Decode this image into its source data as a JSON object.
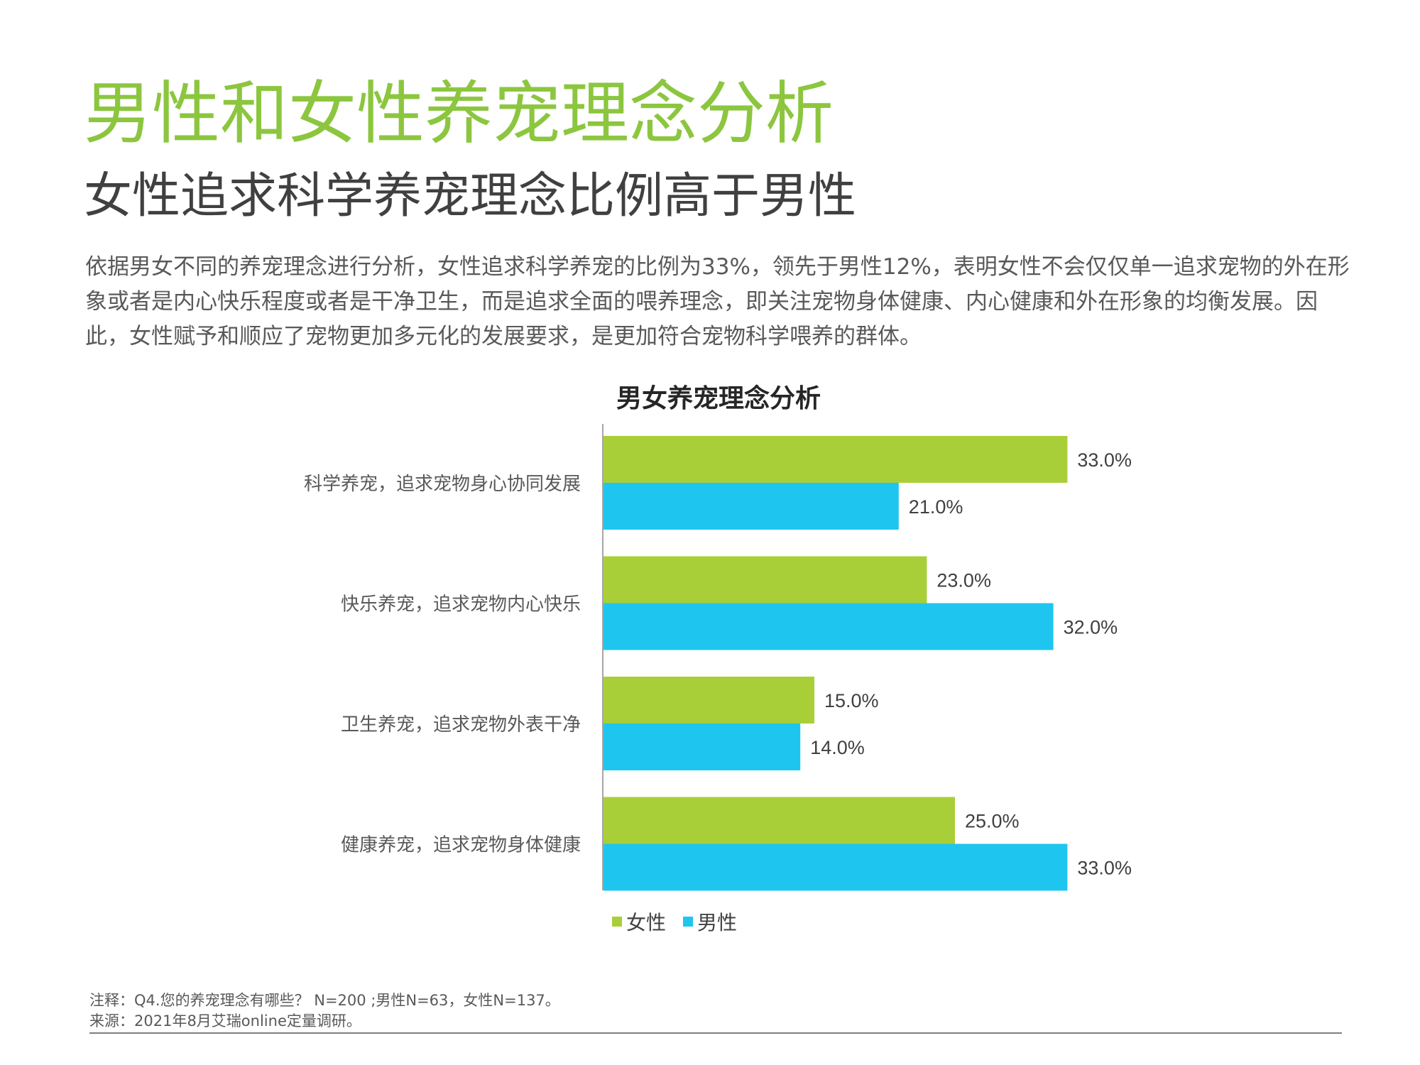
{
  "page": {
    "title": "男性和女性养宠理念分析",
    "subtitle": "女性追求科学养宠理念比例高于男性",
    "paragraph": "依据男女不同的养宠理念进行分析，女性追求科学养宠的比例为33%，领先于男性12%，表明女性不会仅仅单一追求宠物的外在形象或者是内心快乐程度或者是干净卫生，而是追求全面的喂养理念，即关注宠物身体健康、内心健康和外在形象的均衡发展。因此，女性赋予和顺应了宠物更加多元化的发展要求，是更加符合宠物科学喂养的群体。",
    "note": "注释：Q4.您的养宠理念有哪些？ N=200 ;男性N=63，女性N=137。",
    "source": "来源：2021年8月艾瑞online定量调研。"
  },
  "colors": {
    "title": "#8cc63f",
    "female": "#a9cf38",
    "male": "#1ec6ef",
    "axis": "#a6a6a6",
    "footer_line": "#7f7f7f"
  },
  "chart_data": {
    "type": "bar",
    "orientation": "horizontal",
    "title": "男女养宠理念分析",
    "categories": [
      "科学养宠，追求宠物身心协同发展",
      "快乐养宠，追求宠物内心快乐",
      "卫生养宠，追求宠物外表干净",
      "健康养宠，追求宠物身体健康"
    ],
    "series": [
      {
        "name": "女性",
        "values": [
          33.0,
          23.0,
          15.0,
          25.0
        ],
        "labels": [
          "33.0%",
          "23.0%",
          "15.0%",
          "25.0%"
        ],
        "color": "#a9cf38"
      },
      {
        "name": "男性",
        "values": [
          21.0,
          32.0,
          14.0,
          33.0
        ],
        "labels": [
          "21.0%",
          "32.0%",
          "14.0%",
          "33.0%"
        ],
        "color": "#1ec6ef"
      }
    ],
    "xlim": [
      0,
      40
    ],
    "unit": "%",
    "grid": false,
    "legend": {
      "position": "bottom-left",
      "items": [
        "女性",
        "男性"
      ]
    }
  }
}
